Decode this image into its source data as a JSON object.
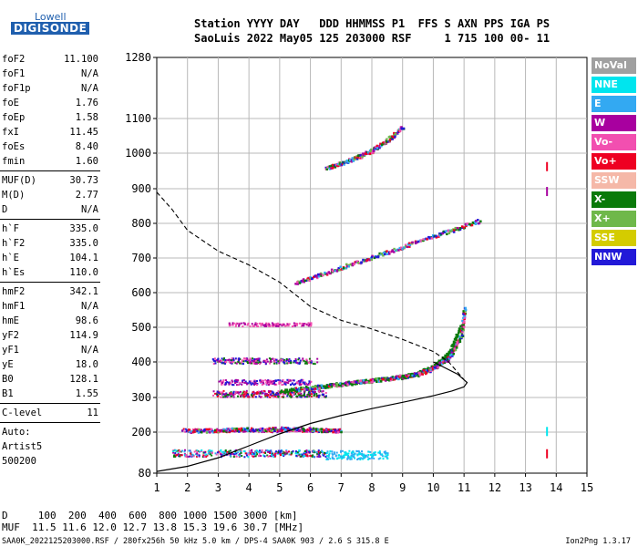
{
  "logo": {
    "line1": "Lowell",
    "line2": "DIGISONDE"
  },
  "header": {
    "line1": "Station YYYY DAY   DDD HHMMSS P1  FFS S AXN PPS IGA PS",
    "line2": "SaoLuis 2022 May05 125 203000 RSF     1 715 100 00- 11"
  },
  "parameters_group1": [
    {
      "name": "foF2",
      "value": "11.100"
    },
    {
      "name": "foF1",
      "value": "N/A"
    },
    {
      "name": "foF1p",
      "value": "N/A"
    },
    {
      "name": "foE",
      "value": "1.76"
    },
    {
      "name": "foEp",
      "value": "1.58"
    },
    {
      "name": "fxI",
      "value": "11.45"
    },
    {
      "name": "foEs",
      "value": "8.40"
    },
    {
      "name": "fmin",
      "value": "1.60"
    }
  ],
  "parameters_group2": [
    {
      "name": "MUF(D)",
      "value": "30.73"
    },
    {
      "name": "M(D)",
      "value": "2.77"
    },
    {
      "name": "D",
      "value": "N/A"
    }
  ],
  "parameters_group3": [
    {
      "name": "h`F",
      "value": "335.0"
    },
    {
      "name": "h`F2",
      "value": "335.0"
    },
    {
      "name": "h`E",
      "value": "104.1"
    },
    {
      "name": "h`Es",
      "value": "110.0"
    }
  ],
  "parameters_group4": [
    {
      "name": "hmF2",
      "value": "342.1"
    },
    {
      "name": "hmF1",
      "value": "N/A"
    },
    {
      "name": "hmE",
      "value": "98.6"
    },
    {
      "name": "yF2",
      "value": "114.9"
    },
    {
      "name": "yF1",
      "value": "N/A"
    },
    {
      "name": "yE",
      "value": "18.0"
    },
    {
      "name": "B0",
      "value": "128.1"
    },
    {
      "name": "B1",
      "value": "1.55"
    }
  ],
  "clevel": {
    "name": "C-level",
    "value": "11"
  },
  "autoscale": {
    "line1": "Auto:",
    "line2": "Artist5",
    "line3": "500200"
  },
  "legend": [
    {
      "label": "NoVal",
      "color": "#a0a0a0"
    },
    {
      "label": "NNE",
      "color": "#00e5ee"
    },
    {
      "label": "E",
      "color": "#33a9f2"
    },
    {
      "label": "W",
      "color": "#a8009f"
    },
    {
      "label": "Vo-",
      "color": "#f24fb0"
    },
    {
      "label": "Vo+",
      "color": "#ee0022"
    },
    {
      "label": "SSW",
      "color": "#f5b8a8"
    },
    {
      "label": "X-",
      "color": "#0a7a0a"
    },
    {
      "label": "X+",
      "color": "#6fb84a"
    },
    {
      "label": "SSE",
      "color": "#d4cc00"
    },
    {
      "label": "NNW",
      "color": "#2219d8"
    }
  ],
  "muf_table": {
    "d_line": "D     100  200  400  600  800 1000 1500 3000 [km]",
    "muf_line": "MUF  11.5 11.6 12.0 12.7 13.8 15.3 19.6 30.7 [MHz]"
  },
  "footer": {
    "left": "SAA0K_2022125203000.RSF / 280fx256h 50 kHz 5.0 km / DPS-4 SAA0K 903 / 2.6 S 315.8 E",
    "right": "Ion2Png 1.3.17"
  },
  "chart_data": {
    "type": "scatter",
    "title": "",
    "xlabel": "",
    "ylabel": "",
    "xlim": [
      1,
      15
    ],
    "ylim": [
      80,
      1290
    ],
    "x_ticks": [
      1,
      2,
      3,
      4,
      5,
      6,
      7,
      8,
      9,
      10,
      11,
      12,
      13,
      14,
      15
    ],
    "y_ticks": [
      80,
      200,
      300,
      400,
      500,
      600,
      700,
      800,
      900,
      1000,
      1100,
      1280
    ],
    "grid": true,
    "profile": {
      "name": "electron density profile",
      "x": [
        1.0,
        2.0,
        3.0,
        4.0,
        5.0,
        6.0,
        7.0,
        8.0,
        9.0,
        10.0,
        10.6,
        11.0,
        11.1,
        10.8,
        10.0
      ],
      "y": [
        85,
        100,
        125,
        160,
        195,
        225,
        248,
        268,
        286,
        305,
        318,
        330,
        342,
        365,
        400
      ]
    },
    "muf_trace": {
      "name": "o-trace model",
      "x": [
        1.0,
        1.5,
        2.0,
        3.0,
        4.0,
        5.0,
        6.0,
        7.0,
        8.0,
        9.0,
        10.0,
        10.5,
        11.0
      ],
      "y": [
        890,
        840,
        780,
        720,
        680,
        630,
        560,
        520,
        495,
        465,
        430,
        400,
        350
      ]
    },
    "traces": [
      {
        "name": "X- F2 trace",
        "x": [
          5.0,
          6.0,
          7.0,
          8.0,
          9.0,
          9.5,
          10.0,
          10.5,
          10.9
        ],
        "y": [
          320,
          330,
          340,
          350,
          360,
          370,
          390,
          430,
          510
        ]
      },
      {
        "name": "Vo- F2 trace",
        "x": [
          5.5,
          6.5,
          7.5,
          8.5,
          9.5,
          10.0,
          10.5,
          10.9,
          11.0
        ],
        "y": [
          325,
          335,
          345,
          355,
          368,
          385,
          415,
          480,
          560
        ]
      },
      {
        "name": "Vo- 2F trace",
        "x": [
          5.5,
          6.5,
          7.5,
          8.5,
          9.5,
          10.5,
          11.5
        ],
        "y": [
          630,
          660,
          690,
          720,
          750,
          780,
          810
        ]
      },
      {
        "name": "Vo- 3F trace",
        "x": [
          6.5,
          7.0,
          7.5,
          8.0,
          8.5,
          9.0
        ],
        "y": [
          960,
          975,
          990,
          1010,
          1040,
          1080
        ]
      },
      {
        "name": "Es layer",
        "x": [
          2.0,
          3.0,
          4.0,
          5.0,
          6.0,
          7.0
        ],
        "y": [
          205,
          208,
          210,
          212,
          210,
          205
        ]
      }
    ]
  }
}
